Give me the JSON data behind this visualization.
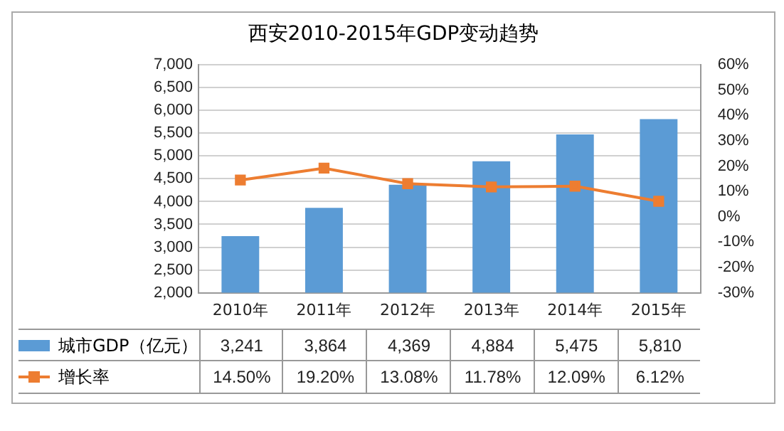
{
  "chart_data": {
    "type": "bar",
    "title": "西安2010-2015年GDP变动趋势",
    "categories": [
      "2010年",
      "2011年",
      "2012年",
      "2013年",
      "2014年",
      "2015年"
    ],
    "series": [
      {
        "name": "城市GDP（亿元）",
        "color": "#5b9bd5",
        "values": [
          3241,
          3864,
          4369,
          4884,
          5475,
          5810
        ],
        "value_labels": [
          "3,241",
          "3,864",
          "4,369",
          "4,884",
          "5,475",
          "5,810"
        ]
      },
      {
        "name": "增长率",
        "type": "line",
        "axis": "y2",
        "color": "#ed7d31",
        "marker": "square",
        "values": [
          14.5,
          19.2,
          13.08,
          11.78,
          12.09,
          6.12
        ],
        "value_labels": [
          "14.50%",
          "19.20%",
          "13.08%",
          "11.78%",
          "12.09%",
          "6.12%"
        ]
      }
    ],
    "ylim": [
      2000,
      7000
    ],
    "yticks": [
      {
        "value": 2000,
        "label": "2,000"
      },
      {
        "value": 2500,
        "label": "2,500"
      },
      {
        "value": 3000,
        "label": "3,000"
      },
      {
        "value": 3500,
        "label": "3,500"
      },
      {
        "value": 4000,
        "label": "4,000"
      },
      {
        "value": 4500,
        "label": "4,500"
      },
      {
        "value": 5000,
        "label": "5,000"
      },
      {
        "value": 5500,
        "label": "5,500"
      },
      {
        "value": 6000,
        "label": "6,000"
      },
      {
        "value": 6500,
        "label": "6,500"
      },
      {
        "value": 7000,
        "label": "7,000"
      }
    ],
    "y2lim": [
      -30,
      60
    ],
    "y2ticks": [
      {
        "value": -30,
        "label": "-30%"
      },
      {
        "value": -20,
        "label": "-20%"
      },
      {
        "value": -10,
        "label": "-10%"
      },
      {
        "value": 0,
        "label": "0%"
      },
      {
        "value": 10,
        "label": "10%"
      },
      {
        "value": 20,
        "label": "20%"
      },
      {
        "value": 30,
        "label": "30%"
      },
      {
        "value": 40,
        "label": "40%"
      },
      {
        "value": 50,
        "label": "50%"
      },
      {
        "value": 60,
        "label": "60%"
      }
    ],
    "grid": "y",
    "legend": "bottom left"
  }
}
